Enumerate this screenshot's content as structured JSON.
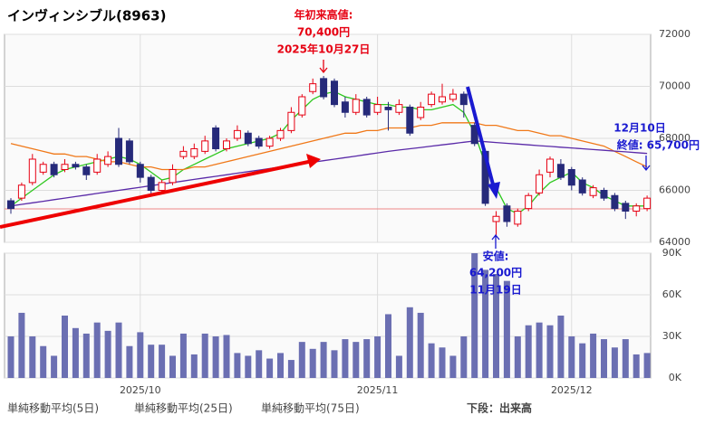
{
  "chart_data": {
    "type": "candlestick",
    "title": "インヴィンシブル(8963)",
    "categories": [
      null,
      null,
      null,
      null,
      null,
      null,
      null,
      null,
      null,
      null,
      null,
      null,
      "2025/10",
      null,
      null,
      null,
      null,
      null,
      null,
      null,
      null,
      null,
      null,
      null,
      null,
      null,
      null,
      null,
      null,
      null,
      null,
      null,
      null,
      null,
      "2025/11",
      null,
      null,
      null,
      null,
      null,
      null,
      null,
      null,
      null,
      null,
      null,
      null,
      null,
      null,
      null,
      null,
      null,
      "2025/12",
      null,
      null,
      null,
      null,
      null,
      null,
      null
    ],
    "open": [
      65600,
      65700,
      66300,
      66700,
      67000,
      66800,
      67000,
      66900,
      66700,
      67000,
      68000,
      67900,
      67000,
      66500,
      66000,
      66300,
      67300,
      67300,
      67500,
      68400,
      67600,
      68000,
      68200,
      68000,
      67700,
      68000,
      68300,
      68900,
      69800,
      70300,
      70200,
      69400,
      69000,
      69500,
      69000,
      69200,
      69000,
      69200,
      68800,
      69300,
      69400,
      69500,
      69700,
      68500,
      67500,
      64800,
      65400,
      64700,
      65300,
      65900,
      66700,
      67000,
      66800,
      66400,
      65800,
      66000,
      65800,
      65500,
      65200,
      65300
    ],
    "high": [
      65700,
      66300,
      67400,
      67100,
      67100,
      67200,
      67100,
      67000,
      67400,
      67500,
      68400,
      68000,
      67100,
      66600,
      66400,
      67000,
      67700,
      67800,
      68100,
      68500,
      68000,
      68500,
      68300,
      68100,
      68100,
      68400,
      69200,
      69700,
      70300,
      70400,
      70300,
      69600,
      69700,
      69600,
      69600,
      69400,
      69500,
      69300,
      69400,
      69800,
      70100,
      69900,
      69800,
      68600,
      67600,
      65200,
      65500,
      65300,
      65900,
      66800,
      67300,
      67200,
      66900,
      66500,
      66200,
      66100,
      65900,
      65600,
      65500,
      65800
    ],
    "low": [
      65100,
      65600,
      66200,
      66600,
      66500,
      66700,
      66800,
      66400,
      66600,
      66900,
      66900,
      67000,
      66300,
      65800,
      65900,
      66200,
      67200,
      67200,
      67400,
      67500,
      67500,
      67900,
      67700,
      67600,
      67600,
      67900,
      68200,
      68800,
      69700,
      69500,
      69200,
      68800,
      68900,
      68800,
      68900,
      68300,
      68900,
      68100,
      68700,
      69200,
      69300,
      69400,
      68800,
      67700,
      65400,
      64200,
      64600,
      64600,
      65200,
      65800,
      66500,
      66400,
      66000,
      65800,
      65700,
      65600,
      65200,
      64900,
      65000,
      65200
    ],
    "close": [
      65300,
      66200,
      67200,
      67000,
      66600,
      67000,
      66900,
      66600,
      67200,
      67300,
      67000,
      67100,
      66500,
      66000,
      66300,
      66800,
      67500,
      67600,
      67900,
      67600,
      67900,
      68300,
      67800,
      67700,
      68000,
      68300,
      69000,
      69600,
      70100,
      69600,
      69300,
      69000,
      69500,
      68900,
      69300,
      69100,
      69300,
      68200,
      69200,
      69700,
      69600,
      69700,
      69300,
      67800,
      65500,
      65000,
      64800,
      65200,
      65800,
      66600,
      67200,
      66500,
      66200,
      65900,
      66100,
      65700,
      65300,
      65200,
      65400,
      65700
    ],
    "up_color": "#e60012",
    "down_color": "#262a7a",
    "ylim": [
      64000,
      72000
    ],
    "yticks": [
      64000,
      66000,
      68000,
      70000,
      72000
    ],
    "grid": true,
    "series": [
      {
        "name": "単純移動平均(5日)",
        "color": "#2ec81e",
        "values": [
          65400,
          65700,
          66000,
          66300,
          66600,
          66800,
          66900,
          67000,
          67100,
          67200,
          67300,
          67200,
          67000,
          66700,
          66400,
          66500,
          66800,
          67000,
          67200,
          67400,
          67600,
          67700,
          67800,
          67900,
          68000,
          68200,
          68700,
          69100,
          69500,
          69700,
          69800,
          69600,
          69500,
          69400,
          69300,
          69300,
          69200,
          69200,
          69100,
          69100,
          69200,
          69300,
          69000,
          68200,
          67000,
          66100,
          65300,
          65100,
          65400,
          65900,
          66300,
          66500,
          66700,
          66300,
          66100,
          65800,
          65600,
          65400,
          65400,
          65400
        ]
      },
      {
        "name": "単純移動平均(25日)",
        "color": "#f07818",
        "values": [
          67800,
          67700,
          67600,
          67500,
          67400,
          67400,
          67300,
          67300,
          67200,
          67100,
          67100,
          67000,
          66900,
          66900,
          66800,
          66800,
          66800,
          66900,
          66900,
          67000,
          67100,
          67200,
          67300,
          67400,
          67500,
          67600,
          67700,
          67800,
          67900,
          68000,
          68100,
          68200,
          68200,
          68300,
          68300,
          68400,
          68400,
          68400,
          68500,
          68500,
          68600,
          68600,
          68600,
          68600,
          68500,
          68500,
          68400,
          68300,
          68300,
          68200,
          68100,
          68100,
          68000,
          67900,
          67800,
          67700,
          67500,
          67300,
          67100,
          66900
        ]
      },
      {
        "name": "単純移動平均(75日)",
        "color": "#5a2aa8",
        "values": [
          65400,
          65460,
          65520,
          65580,
          65640,
          65700,
          65760,
          65820,
          65880,
          65940,
          66000,
          66060,
          66120,
          66180,
          66240,
          66300,
          66360,
          66420,
          66480,
          66540,
          66600,
          66660,
          66720,
          66780,
          66840,
          66900,
          66960,
          67020,
          67080,
          67140,
          67200,
          67260,
          67320,
          67380,
          67440,
          67500,
          67550,
          67600,
          67650,
          67700,
          67750,
          67800,
          67850,
          67900,
          67870,
          67840,
          67810,
          67780,
          67750,
          67720,
          67690,
          67660,
          67630,
          67600,
          67570,
          67540,
          67510,
          67480,
          67450,
          67420
        ]
      }
    ],
    "volume": {
      "name": "下段：出来高",
      "color": "#6b6fb2",
      "values": [
        30000,
        47000,
        30000,
        23000,
        16000,
        45000,
        36000,
        32000,
        40000,
        34000,
        40000,
        23000,
        33000,
        24000,
        24000,
        16000,
        32000,
        17000,
        32000,
        30000,
        31000,
        18000,
        16000,
        20000,
        14000,
        18000,
        13000,
        26000,
        21000,
        26000,
        20000,
        28000,
        26000,
        28000,
        30000,
        46000,
        16000,
        51000,
        47000,
        25000,
        22000,
        16000,
        30000,
        90000,
        78000,
        75000,
        70000,
        30000,
        38000,
        40000,
        38000,
        45000,
        30000,
        25000,
        32000,
        28000,
        22000,
        28000,
        17000,
        18000
      ],
      "ylim": [
        0,
        90000
      ],
      "yticks": [
        {
          "value": 0,
          "label": "0K"
        },
        {
          "value": 30000,
          "label": "30K"
        },
        {
          "value": 60000,
          "label": "60K"
        },
        {
          "value": 90000,
          "label": "90K"
        }
      ]
    },
    "annotations": [
      [
        "年初来高値:",
        "70,400円",
        "2025年10月27日"
      ],
      [
        "安値:",
        "64,200円",
        "11月19日"
      ],
      [
        "12月10日",
        "終値: 65,700円"
      ]
    ]
  }
}
